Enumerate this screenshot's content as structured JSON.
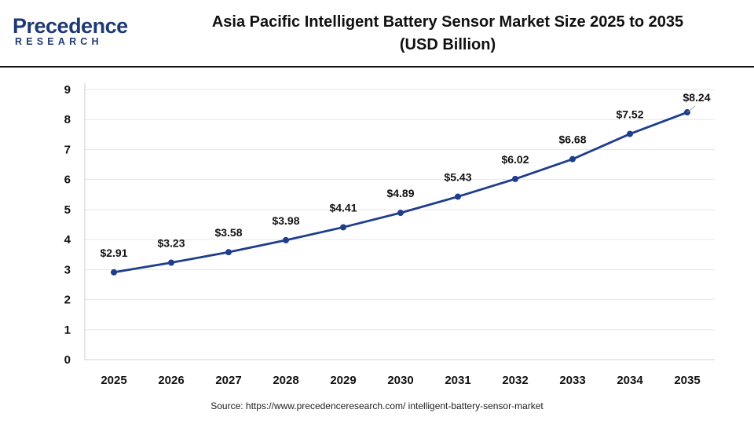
{
  "logo": {
    "main": "Precedence",
    "sub": "RESEARCH"
  },
  "title": {
    "line1": "Asia Pacific Intelligent Battery Sensor Market Size 2025 to 2035",
    "line2": "(USD Billion)"
  },
  "source": "Source: https://www.precedenceresearch.com/ intelligent-battery-sensor-market",
  "colors": {
    "line": "#1f3d8c",
    "brand": "#1f3a73",
    "grid": "#e6e6e6",
    "axis": "#111111"
  },
  "chart_data": {
    "type": "line",
    "categories": [
      "2025",
      "2026",
      "2027",
      "2028",
      "2029",
      "2030",
      "2031",
      "2032",
      "2033",
      "2034",
      "2035"
    ],
    "series": [
      {
        "values": [
          2.91,
          3.23,
          3.58,
          3.98,
          4.41,
          4.89,
          5.43,
          6.02,
          6.68,
          7.52,
          8.24
        ]
      }
    ],
    "data_labels": [
      "$2.91",
      "$3.23",
      "$3.58",
      "$3.98",
      "$4.41",
      "$4.89",
      "$5.43",
      "$6.02",
      "$6.68",
      "$7.52",
      "$8.24"
    ],
    "y_ticks": [
      "0",
      "1",
      "2",
      "3",
      "4",
      "5",
      "6",
      "7",
      "8",
      "9"
    ],
    "ylim": [
      0,
      9
    ],
    "grid": true,
    "legend": "none"
  }
}
